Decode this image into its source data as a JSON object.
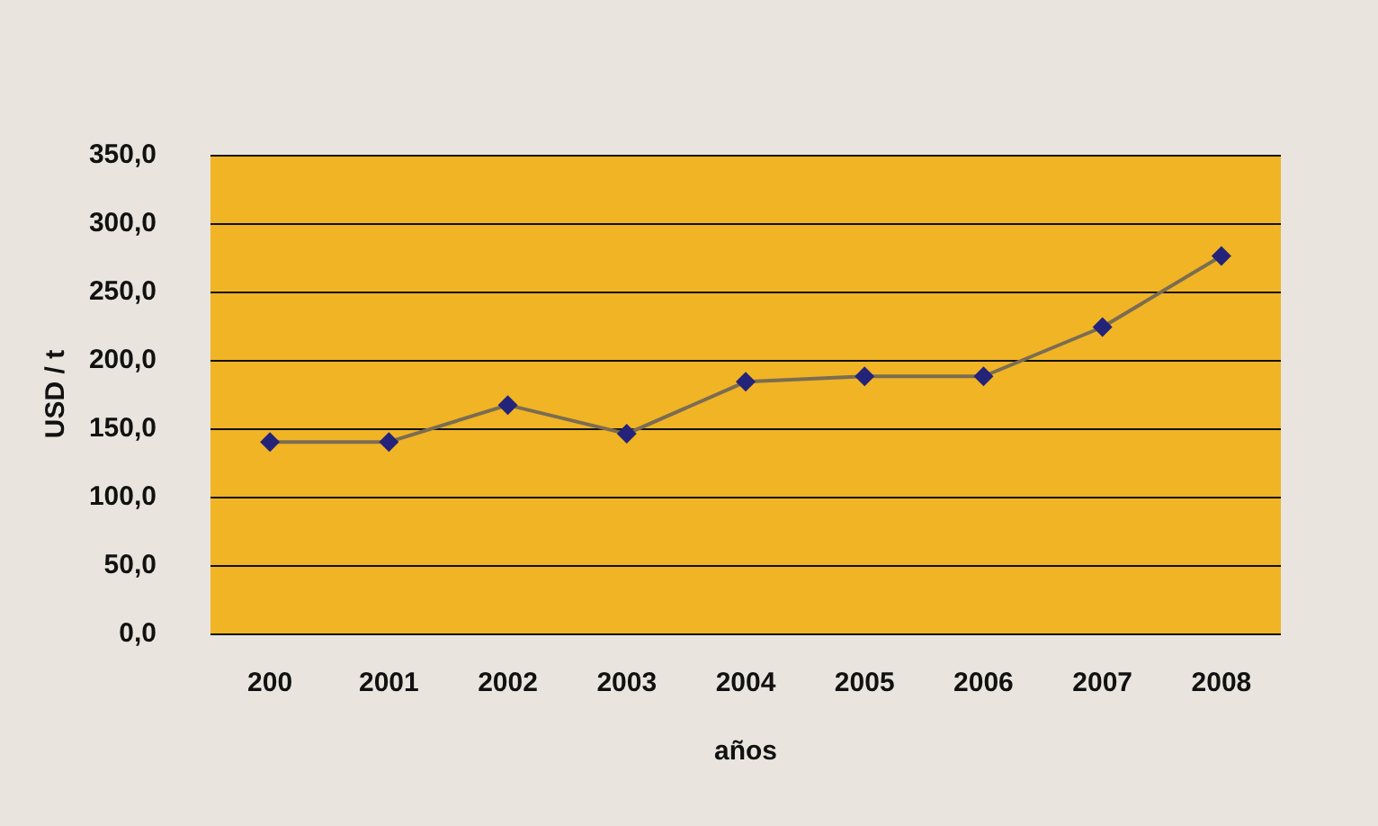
{
  "chart_data": {
    "type": "line",
    "xlabel": "años",
    "ylabel": "USD / t",
    "categories": [
      "200",
      "2001",
      "2002",
      "2003",
      "2004",
      "2005",
      "2006",
      "2007",
      "2008"
    ],
    "series": [
      {
        "color": "#23237a",
        "values": [
          140,
          140,
          167,
          146,
          184,
          188,
          188,
          224,
          276
        ]
      }
    ],
    "ylim": [
      0,
      350
    ],
    "yticks": [
      {
        "value": 0,
        "label": "0,0"
      },
      {
        "value": 50,
        "label": "50,0"
      },
      {
        "value": 100,
        "label": "100,0"
      },
      {
        "value": 150,
        "label": "150,0"
      },
      {
        "value": 200,
        "label": "200,0"
      },
      {
        "value": 250,
        "label": "250,0"
      },
      {
        "value": 300,
        "label": "300,0"
      },
      {
        "value": 350,
        "label": "350,0"
      }
    ],
    "grid": "y",
    "marker": "diamond",
    "line_style": "solid"
  }
}
